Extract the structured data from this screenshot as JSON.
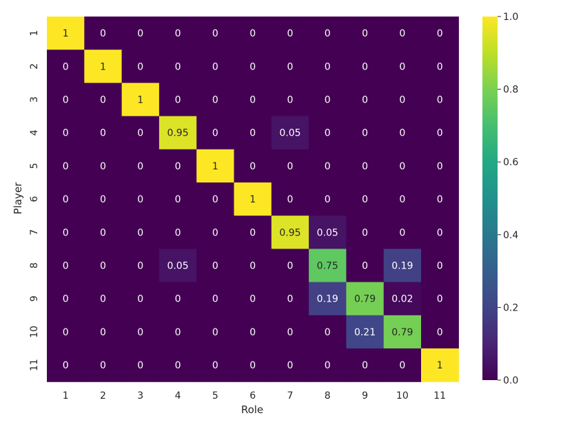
{
  "chart_data": {
    "type": "heatmap",
    "xlabel": "Role",
    "ylabel": "Player",
    "x_categories": [
      "1",
      "2",
      "3",
      "4",
      "5",
      "6",
      "7",
      "8",
      "9",
      "10",
      "11"
    ],
    "y_categories": [
      "1",
      "2",
      "3",
      "4",
      "5",
      "6",
      "7",
      "8",
      "9",
      "10",
      "11"
    ],
    "values": [
      [
        1,
        0,
        0,
        0,
        0,
        0,
        0,
        0,
        0,
        0,
        0
      ],
      [
        0,
        1,
        0,
        0,
        0,
        0,
        0,
        0,
        0,
        0,
        0
      ],
      [
        0,
        0,
        1,
        0,
        0,
        0,
        0,
        0,
        0,
        0,
        0
      ],
      [
        0,
        0,
        0,
        0.95,
        0,
        0,
        0.05,
        0,
        0,
        0,
        0
      ],
      [
        0,
        0,
        0,
        0,
        1,
        0,
        0,
        0,
        0,
        0,
        0
      ],
      [
        0,
        0,
        0,
        0,
        0,
        1,
        0,
        0,
        0,
        0,
        0
      ],
      [
        0,
        0,
        0,
        0,
        0,
        0,
        0.95,
        0.05,
        0,
        0,
        0
      ],
      [
        0,
        0,
        0,
        0.05,
        0,
        0,
        0,
        0.75,
        0,
        0.19,
        0
      ],
      [
        0,
        0,
        0,
        0,
        0,
        0,
        0,
        0.19,
        0.79,
        0.02,
        0
      ],
      [
        0,
        0,
        0,
        0,
        0,
        0,
        0,
        0,
        0.21,
        0.79,
        0
      ],
      [
        0,
        0,
        0,
        0,
        0,
        0,
        0,
        0,
        0,
        0,
        1
      ]
    ],
    "colormap": "viridis",
    "vmin": 0,
    "vmax": 1,
    "annotated": true,
    "colorbar": {
      "ticks": [
        0,
        0.2,
        0.4,
        0.6,
        0.8,
        1
      ],
      "tick_labels": [
        "0.0",
        "0.2",
        "0.4",
        "0.6",
        "0.8",
        "1.0"
      ],
      "position": "right"
    }
  }
}
